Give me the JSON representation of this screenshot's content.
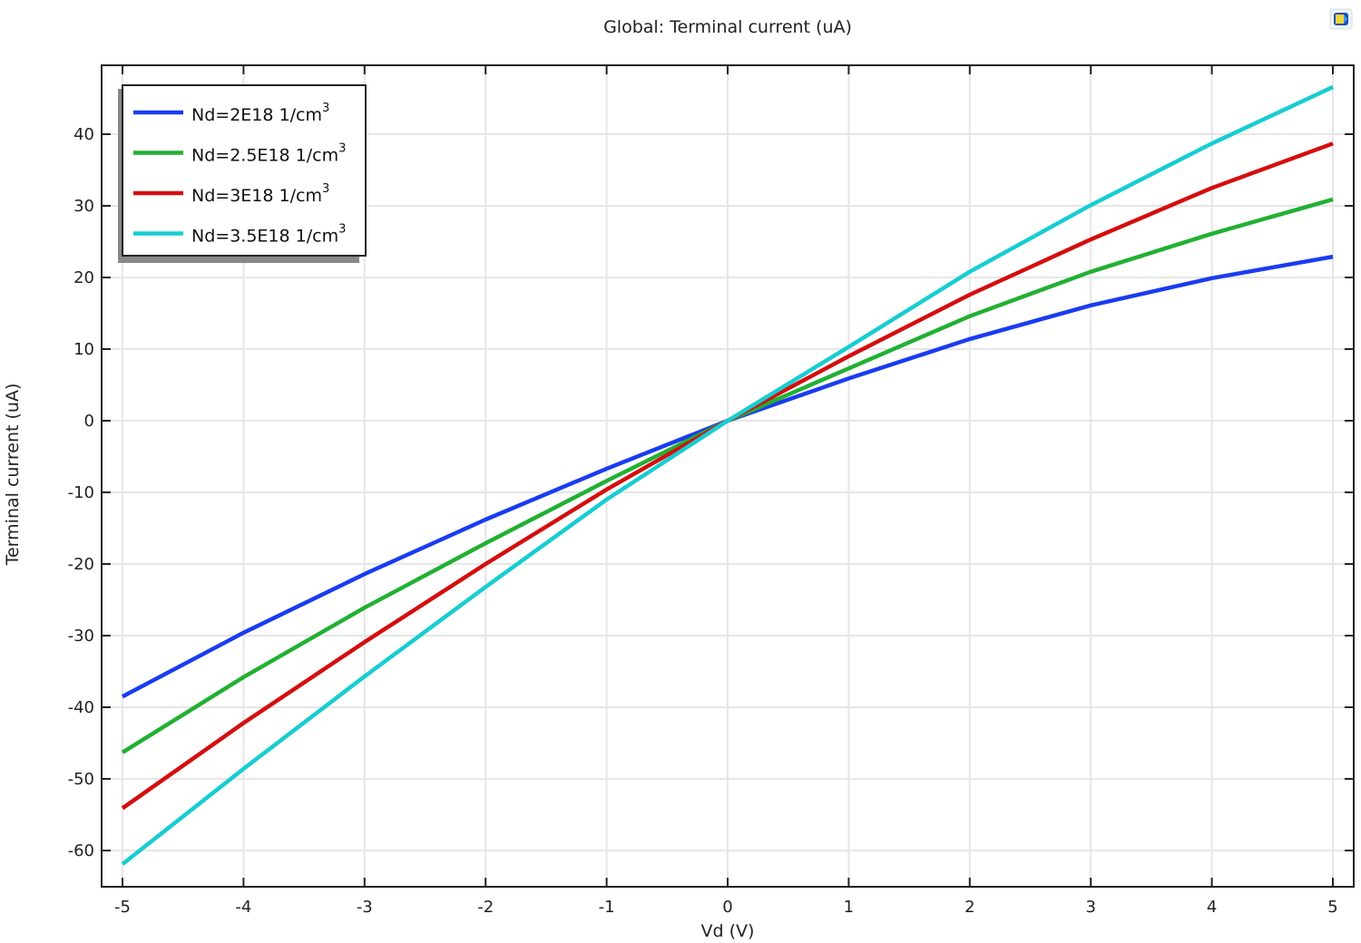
{
  "title": "Global: Terminal current (uA)",
  "toolbar": {
    "icon": "export-image-icon"
  },
  "chart_data": {
    "type": "line",
    "title": "Global: Terminal current (uA)",
    "xlabel": "Vd (V)",
    "ylabel": "Terminal current (uA)",
    "xlim": [
      -5.2,
      5.2
    ],
    "ylim": [
      -65,
      49
    ],
    "grid": true,
    "legend_position": "upper-left",
    "x": [
      -5,
      -4,
      -3,
      -2,
      -1,
      0,
      1,
      2,
      3,
      4,
      5
    ],
    "x_ticks": [
      "-5",
      "-4",
      "-3",
      "-2",
      "-1",
      "0",
      "1",
      "2",
      "3",
      "4",
      "5"
    ],
    "y_ticks": [
      "40",
      "30",
      "20",
      "10",
      "0",
      "-10",
      "-20",
      "-30",
      "-40",
      "-50",
      "-60"
    ],
    "y_tick_values": [
      40,
      30,
      20,
      10,
      0,
      -10,
      -20,
      -30,
      -40,
      -50,
      -60
    ],
    "series": [
      {
        "name": "Nd=2E18 1/cm",
        "sup": "3",
        "color": "#1a3cf0",
        "values": [
          -38.5,
          -29.6,
          -21.4,
          -13.8,
          -6.7,
          0,
          5.9,
          11.4,
          16.1,
          19.9,
          22.9
        ]
      },
      {
        "name": "Nd=2.5E18 1/cm",
        "sup": "3",
        "color": "#22b033",
        "values": [
          -46.3,
          -35.8,
          -26.1,
          -17.1,
          -8.4,
          0,
          7.3,
          14.6,
          20.8,
          26.1,
          30.9
        ]
      },
      {
        "name": "Nd=3E18 1/cm",
        "sup": "3",
        "color": "#d40e0e",
        "values": [
          -54.1,
          -42.2,
          -30.9,
          -20.0,
          -9.6,
          0,
          9.0,
          17.6,
          25.3,
          32.5,
          38.7
        ]
      },
      {
        "name": "Nd=3.5E18 1/cm",
        "sup": "3",
        "color": "#17cdd1",
        "values": [
          -61.9,
          -48.6,
          -35.7,
          -23.2,
          -11.0,
          0,
          10.3,
          20.8,
          30.1,
          38.7,
          46.6
        ]
      }
    ]
  }
}
